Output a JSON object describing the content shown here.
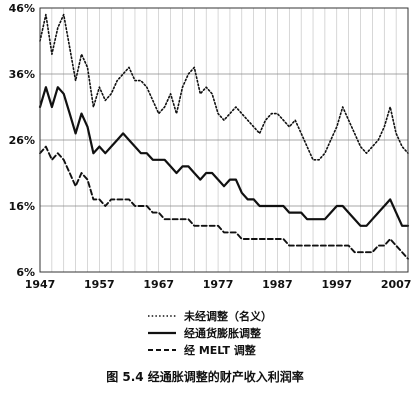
{
  "chart_data": {
    "type": "line",
    "title": "",
    "caption": "图 5.4 经通胀调整的财产收入利润率",
    "xlabel": "",
    "ylabel": "",
    "xlim": [
      1947,
      2009
    ],
    "ylim": [
      6,
      46
    ],
    "grid": true,
    "legend_placement": "bottom-left",
    "x_ticks": [
      1947,
      1957,
      1967,
      1977,
      1987,
      1997,
      2007
    ],
    "x_tick_labels": [
      "1947",
      "1957",
      "1967",
      "1977",
      "1987",
      "1997",
      "2007"
    ],
    "y_ticks": [
      6,
      16,
      26,
      36,
      46
    ],
    "y_tick_labels": [
      "6%",
      "16%",
      "26%",
      "36%",
      "46%"
    ],
    "series": [
      {
        "name": "未经调整（名义）",
        "style": "dotted",
        "x": [
          1947,
          1948,
          1949,
          1950,
          1951,
          1952,
          1953,
          1954,
          1955,
          1956,
          1957,
          1958,
          1959,
          1960,
          1961,
          1962,
          1963,
          1964,
          1965,
          1966,
          1967,
          1968,
          1969,
          1970,
          1971,
          1972,
          1973,
          1974,
          1975,
          1976,
          1977,
          1978,
          1979,
          1980,
          1981,
          1982,
          1983,
          1984,
          1985,
          1986,
          1987,
          1988,
          1989,
          1990,
          1991,
          1992,
          1993,
          1994,
          1995,
          1996,
          1997,
          1998,
          1999,
          2000,
          2001,
          2002,
          2003,
          2004,
          2005,
          2006,
          2007,
          2008,
          2009
        ],
        "values": [
          41,
          45,
          39,
          43,
          45,
          40,
          35,
          39,
          37,
          31,
          34,
          32,
          33,
          35,
          36,
          37,
          35,
          35,
          34,
          32,
          30,
          31,
          33,
          30,
          34,
          36,
          37,
          33,
          34,
          33,
          30,
          29,
          30,
          31,
          30,
          29,
          28,
          27,
          29,
          30,
          30,
          29,
          28,
          29,
          27,
          25,
          23,
          23,
          24,
          26,
          28,
          31,
          29,
          27,
          25,
          24,
          25,
          26,
          28,
          31,
          27,
          25,
          24
        ]
      },
      {
        "name": "经通货膨胀调整",
        "style": "solid",
        "x": [
          1947,
          1948,
          1949,
          1950,
          1951,
          1952,
          1953,
          1954,
          1955,
          1956,
          1957,
          1958,
          1959,
          1960,
          1961,
          1962,
          1963,
          1964,
          1965,
          1966,
          1967,
          1968,
          1969,
          1970,
          1971,
          1972,
          1973,
          1974,
          1975,
          1976,
          1977,
          1978,
          1979,
          1980,
          1981,
          1982,
          1983,
          1984,
          1985,
          1986,
          1987,
          1988,
          1989,
          1990,
          1991,
          1992,
          1993,
          1994,
          1995,
          1996,
          1997,
          1998,
          1999,
          2000,
          2001,
          2002,
          2003,
          2004,
          2005,
          2006,
          2007,
          2008,
          2009
        ],
        "values": [
          31,
          34,
          31,
          34,
          33,
          30,
          27,
          30,
          28,
          24,
          25,
          24,
          25,
          26,
          27,
          26,
          25,
          24,
          24,
          23,
          23,
          23,
          22,
          21,
          22,
          22,
          21,
          20,
          21,
          21,
          20,
          19,
          20,
          20,
          18,
          17,
          17,
          16,
          16,
          16,
          16,
          16,
          15,
          15,
          15,
          14,
          14,
          14,
          14,
          15,
          16,
          16,
          15,
          14,
          13,
          13,
          14,
          15,
          16,
          17,
          15,
          13,
          13
        ]
      },
      {
        "name": "经 MELT 调整",
        "style": "dashed",
        "x": [
          1947,
          1948,
          1949,
          1950,
          1951,
          1952,
          1953,
          1954,
          1955,
          1956,
          1957,
          1958,
          1959,
          1960,
          1961,
          1962,
          1963,
          1964,
          1965,
          1966,
          1967,
          1968,
          1969,
          1970,
          1971,
          1972,
          1973,
          1974,
          1975,
          1976,
          1977,
          1978,
          1979,
          1980,
          1981,
          1982,
          1983,
          1984,
          1985,
          1986,
          1987,
          1988,
          1989,
          1990,
          1991,
          1992,
          1993,
          1994,
          1995,
          1996,
          1997,
          1998,
          1999,
          2000,
          2001,
          2002,
          2003,
          2004,
          2005,
          2006,
          2007,
          2008,
          2009
        ],
        "values": [
          24,
          25,
          23,
          24,
          23,
          21,
          19,
          21,
          20,
          17,
          17,
          16,
          17,
          17,
          17,
          17,
          16,
          16,
          16,
          15,
          15,
          14,
          14,
          14,
          14,
          14,
          13,
          13,
          13,
          13,
          13,
          12,
          12,
          12,
          11,
          11,
          11,
          11,
          11,
          11,
          11,
          11,
          10,
          10,
          10,
          10,
          10,
          10,
          10,
          10,
          10,
          10,
          10,
          9,
          9,
          9,
          9,
          10,
          10,
          11,
          10,
          9,
          8
        ]
      }
    ]
  }
}
